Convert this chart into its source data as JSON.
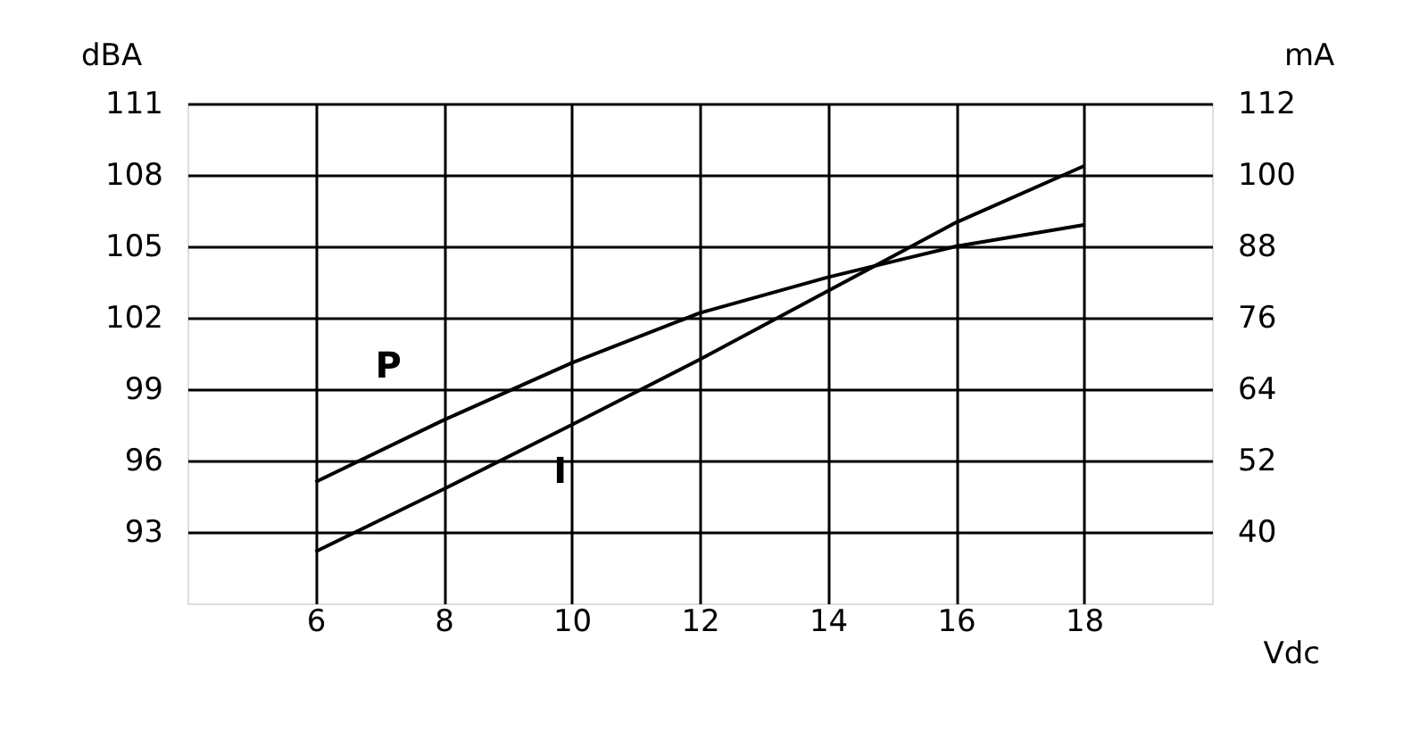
{
  "chart_data": {
    "type": "line",
    "xlabel": "Vdc",
    "ylabel": "dBA",
    "y2label": "mA",
    "xlim": [
      4,
      20
    ],
    "xticks": [
      6,
      8,
      10,
      12,
      14,
      16,
      18
    ],
    "ylim": [
      90,
      111
    ],
    "yticks": [
      93,
      96,
      99,
      102,
      105,
      108,
      111
    ],
    "y2lim": [
      28,
      112
    ],
    "y2ticks": [
      40,
      52,
      64,
      76,
      88,
      100,
      112
    ],
    "x": [
      6,
      8,
      10,
      12,
      14,
      16,
      18
    ],
    "series": [
      {
        "name": "P",
        "color": "#000000",
        "values": [
          95.1,
          97.7,
          100.1,
          102.2,
          103.7,
          105.0,
          105.9
        ]
      },
      {
        "name": "I",
        "color": "#000000",
        "axis": "y2",
        "values": [
          36.7,
          47.2,
          58.0,
          69.0,
          80.5,
          92.0,
          101.5
        ]
      }
    ],
    "grid": true,
    "legend": false,
    "marker": "none",
    "line_style": "solid"
  }
}
